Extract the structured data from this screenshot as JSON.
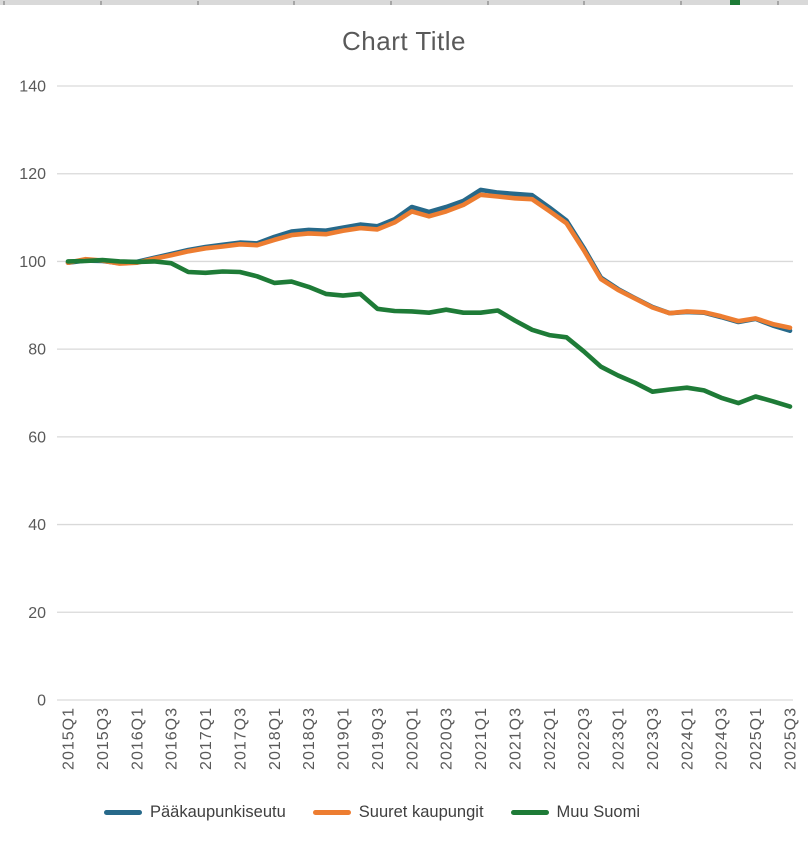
{
  "app": {
    "top_strip": {
      "column_tick_positions": [
        3,
        100,
        197,
        293,
        390,
        487,
        583,
        680,
        777
      ],
      "strip_color": "#d9d9d9",
      "tick_color": "#a6a6a6",
      "selection_mark": {
        "x": 730,
        "width": 10,
        "color": "#1e7b37"
      }
    }
  },
  "chart_data": {
    "type": "line",
    "title": "Chart Title",
    "title_color": "#595959",
    "categories": [
      "2015Q1",
      "2015Q2",
      "2015Q3",
      "2015Q4",
      "2016Q1",
      "2016Q2",
      "2016Q3",
      "2016Q4",
      "2017Q1",
      "2017Q2",
      "2017Q3",
      "2017Q4",
      "2018Q1",
      "2018Q2",
      "2018Q3",
      "2018Q4",
      "2019Q1",
      "2019Q2",
      "2019Q3",
      "2019Q4",
      "2020Q1",
      "2020Q2",
      "2020Q3",
      "2020Q4",
      "2021Q1",
      "2021Q2",
      "2021Q3",
      "2021Q4",
      "2022Q1",
      "2022Q2",
      "2022Q3",
      "2022Q4",
      "2023Q1",
      "2023Q2",
      "2023Q3",
      "2023Q4",
      "2024Q1",
      "2024Q2",
      "2024Q3",
      "2024Q4",
      "2025Q1",
      "2025Q2",
      "2025Q3"
    ],
    "x_tick_every": 2,
    "series": [
      {
        "name": "Pääkaupunkiseutu",
        "color": "#27698a",
        "values": [
          99.7,
          100.2,
          100.1,
          99.6,
          99.9,
          100.8,
          101.7,
          102.6,
          103.3,
          103.8,
          104.3,
          104.1,
          105.6,
          106.8,
          107.2,
          107.0,
          107.7,
          108.4,
          108.0,
          109.6,
          112.4,
          111.3,
          112.4,
          113.8,
          116.3,
          115.7,
          115.4,
          115.1,
          112.3,
          109.3,
          103.1,
          96.3,
          93.7,
          91.6,
          89.6,
          88.2,
          88.5,
          88.3,
          87.3,
          86.2,
          86.9,
          85.4,
          84.2
        ]
      },
      {
        "name": "Suuret kaupungit",
        "color": "#ed7d31",
        "values": [
          99.7,
          100.5,
          100.2,
          99.5,
          99.7,
          100.6,
          101.4,
          102.3,
          103.0,
          103.4,
          103.9,
          103.7,
          104.9,
          106.0,
          106.4,
          106.2,
          107.0,
          107.6,
          107.3,
          108.9,
          111.4,
          110.3,
          111.4,
          112.9,
          115.2,
          114.8,
          114.4,
          114.2,
          111.5,
          108.7,
          102.6,
          96.0,
          93.5,
          91.5,
          89.5,
          88.2,
          88.6,
          88.4,
          87.5,
          86.4,
          87.0,
          85.7,
          84.9
        ]
      },
      {
        "name": "Muu Suomi",
        "color": "#1e7b37",
        "values": [
          100.0,
          100.1,
          100.3,
          100.0,
          99.9,
          100.0,
          99.6,
          97.6,
          97.4,
          97.7,
          97.6,
          96.6,
          95.1,
          95.4,
          94.2,
          92.6,
          92.2,
          92.6,
          89.2,
          88.7,
          88.6,
          88.3,
          89.0,
          88.3,
          88.3,
          88.8,
          86.5,
          84.4,
          83.2,
          82.7,
          79.5,
          76.0,
          74.0,
          72.3,
          70.3,
          70.8,
          71.2,
          70.6,
          68.9,
          67.7,
          69.2,
          68.1,
          66.9
        ]
      }
    ],
    "ylim": [
      0,
      140
    ],
    "yticks": [
      0,
      20,
      40,
      60,
      80,
      100,
      120,
      140
    ],
    "grid": "horizontal",
    "gridline_color": "#d9d9d9",
    "axis_label_color": "#595959",
    "legend_position": "bottom"
  }
}
